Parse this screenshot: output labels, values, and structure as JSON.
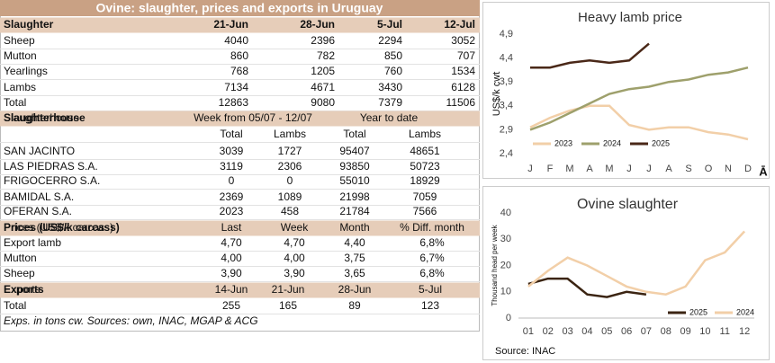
{
  "table": {
    "title": "Ovine: slaughter, prices and exports in Uruguay",
    "slaughter": {
      "header": [
        "Slaughter",
        "21-Jun",
        "28-Jun",
        "5-Jul",
        "12-Jul"
      ],
      "rows": [
        [
          "Sheep",
          4040,
          2396,
          2294,
          3052
        ],
        [
          "Mutton",
          860,
          782,
          850,
          707
        ],
        [
          "Yearlings",
          768,
          1205,
          760,
          1534
        ],
        [
          "Lambs",
          7134,
          4671,
          3430,
          6128
        ],
        [
          "Total",
          12863,
          9080,
          7379,
          11506
        ]
      ]
    },
    "slaughterhouse": {
      "header": [
        "Slaughterhouse",
        "Week from  05/07 - 12/07",
        "Year to date"
      ],
      "subheader": [
        "Total",
        "Lambs",
        "Total",
        "Lambs"
      ],
      "rows": [
        [
          "SAN JACINTO",
          3039,
          1727,
          95407,
          48651
        ],
        [
          "LAS PIEDRAS S.A.",
          3119,
          2306,
          93850,
          50723
        ],
        [
          "FRIGOCERRO S.A.",
          0,
          0,
          55010,
          18929
        ],
        [
          "BAMIDAL S.A.",
          2369,
          1089,
          21998,
          7059
        ],
        [
          "OFERAN S.A.",
          2023,
          458,
          21784,
          7566
        ]
      ]
    },
    "prices": {
      "header": [
        "Prices (US$/k carcass)",
        "Last",
        "Week",
        "Month",
        "% Diff. month"
      ],
      "rows": [
        [
          "Export lamb",
          "4,70",
          "4,70",
          "4,40",
          "6,8%"
        ],
        [
          "Mutton",
          "4,00",
          "4,00",
          "3,75",
          "6,7%"
        ],
        [
          "Sheep",
          "3,90",
          "3,90",
          "3,65",
          "6,8%"
        ]
      ]
    },
    "exports": {
      "header": [
        "Exports",
        "14-Jun",
        "21-Jun",
        "28-Jun",
        "5-Jul"
      ],
      "rows": [
        [
          "Total",
          255,
          165,
          89,
          123
        ]
      ]
    },
    "note": "Exps. in tons cw. Sources: own, INAC, MGAP & ACG"
  },
  "chart_data": [
    {
      "type": "line",
      "title": "Heavy lamb price",
      "y_label": "US$/k cwt",
      "categories": [
        "J",
        "F",
        "M",
        "A",
        "M",
        "J",
        "J",
        "A",
        "S",
        "O",
        "N",
        "D"
      ],
      "series": [
        {
          "name": "2023",
          "color": "#f2cfa8",
          "values": [
            2.95,
            3.15,
            3.3,
            3.4,
            3.4,
            3.0,
            2.9,
            2.95,
            2.95,
            2.85,
            2.8,
            2.7
          ]
        },
        {
          "name": "2024",
          "color": "#9ea06c",
          "values": [
            2.9,
            3.05,
            3.25,
            3.45,
            3.65,
            3.75,
            3.8,
            3.9,
            3.95,
            4.05,
            4.1,
            4.2
          ]
        },
        {
          "name": "2025",
          "color": "#4a2818",
          "values": [
            4.2,
            4.2,
            4.3,
            4.35,
            4.3,
            4.35,
            4.7,
            null,
            null,
            null,
            null,
            null
          ]
        }
      ],
      "ylim": [
        2.4,
        4.9
      ],
      "yticks": [
        {
          "value": 2.4,
          "label": "2,4"
        },
        {
          "value": 2.9,
          "label": "2,9"
        },
        {
          "value": 3.4,
          "label": "3,4"
        },
        {
          "value": 3.9,
          "label": "3,9"
        },
        {
          "value": 4.4,
          "label": "4,4"
        },
        {
          "value": 4.9,
          "label": "4,9"
        }
      ],
      "grid": false,
      "legend": "bottom",
      "annotation": "Ā"
    },
    {
      "type": "line",
      "title": "Ovine slaughter",
      "y_label": "Thousand head per week",
      "categories": [
        "01",
        "02",
        "03",
        "04",
        "05",
        "06",
        "07",
        "08",
        "09",
        "10",
        "11",
        "12"
      ],
      "series": [
        {
          "name": "2025",
          "color": "#3b2412",
          "values": [
            13,
            15,
            15,
            9,
            8,
            10,
            9,
            null,
            null,
            null,
            null,
            null
          ]
        },
        {
          "name": "2024",
          "color": "#f2cfa8",
          "values": [
            12,
            18,
            23,
            20,
            16,
            12,
            10,
            9,
            12,
            22,
            25,
            33
          ]
        }
      ],
      "ylim": [
        0,
        40
      ],
      "yticks": [
        0,
        10,
        20,
        30,
        40
      ],
      "grid": false,
      "legend": "lower left",
      "source": "Source: INAC"
    }
  ]
}
